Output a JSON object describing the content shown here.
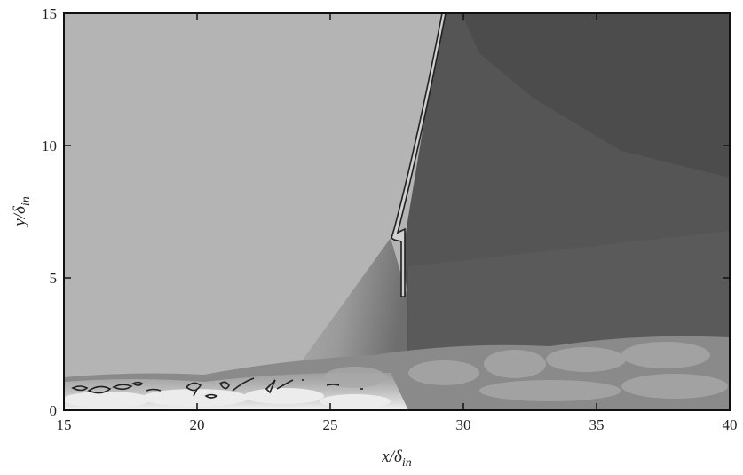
{
  "chart_data": {
    "type": "contour",
    "xlabel": {
      "text": "x/δ",
      "subscript": "in"
    },
    "ylabel": {
      "text": "y/δ",
      "subscript": "in"
    },
    "xlim": [
      15,
      40
    ],
    "ylim": [
      0,
      15
    ],
    "xticks": [
      15,
      20,
      25,
      30,
      35,
      40
    ],
    "yticks": [
      0,
      5,
      10,
      15
    ]
  }
}
